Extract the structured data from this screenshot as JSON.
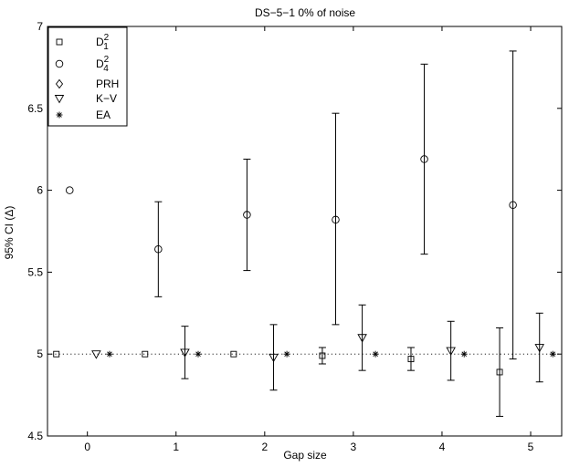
{
  "chart_data": {
    "type": "scatter",
    "title": "DS−5−1  0% of noise",
    "xlabel": "Gap size",
    "ylabel": "95% CI (Δ)",
    "xlim": [
      -0.45,
      5.35
    ],
    "ylim": [
      4.5,
      7
    ],
    "xticks": [
      0,
      1,
      2,
      3,
      4,
      5
    ],
    "yticks": [
      4.5,
      5,
      5.5,
      6,
      6.5,
      7
    ],
    "ytick_labels": [
      "4.5",
      "5",
      "5.5",
      "6",
      "6.5",
      "7"
    ],
    "reference_line": {
      "y": 5,
      "style": "dotted"
    },
    "grid": false,
    "legend_position": "top-left",
    "series": [
      {
        "legend_main": "D",
        "legend_sub": "1",
        "legend_sup": "2",
        "marker": "square",
        "points": [
          {
            "x": -0.35,
            "y": 5.0
          },
          {
            "x": 0.65,
            "y": 5.0
          },
          {
            "x": 1.65,
            "y": 5.0
          },
          {
            "x": 2.65,
            "y": 4.99,
            "low": 4.94,
            "high": 5.04
          },
          {
            "x": 3.65,
            "y": 4.97,
            "low": 4.9,
            "high": 5.04
          },
          {
            "x": 4.65,
            "y": 4.89,
            "low": 4.62,
            "high": 5.16
          }
        ]
      },
      {
        "legend_main": "D",
        "legend_sub": "4",
        "legend_sup": "2",
        "marker": "circle",
        "points": [
          {
            "x": -0.2,
            "y": 6.0
          },
          {
            "x": 0.8,
            "y": 5.64,
            "low": 5.35,
            "high": 5.93
          },
          {
            "x": 1.8,
            "y": 5.85,
            "low": 5.51,
            "high": 6.19
          },
          {
            "x": 2.8,
            "y": 5.82,
            "low": 5.18,
            "high": 6.47
          },
          {
            "x": 3.8,
            "y": 6.19,
            "low": 5.61,
            "high": 6.77
          },
          {
            "x": 4.8,
            "y": 5.91,
            "low": 4.97,
            "high": 6.85
          }
        ]
      },
      {
        "legend_main": "PRH",
        "marker": "diamond",
        "points": []
      },
      {
        "legend_main": "K−V",
        "marker": "triangle-down",
        "points": [
          {
            "x": 0.1,
            "y": 5.0
          },
          {
            "x": 1.1,
            "y": 5.01,
            "low": 4.85,
            "high": 5.17
          },
          {
            "x": 2.1,
            "y": 4.98,
            "low": 4.78,
            "high": 5.18
          },
          {
            "x": 3.1,
            "y": 5.1,
            "low": 4.9,
            "high": 5.3
          },
          {
            "x": 4.1,
            "y": 5.02,
            "low": 4.84,
            "high": 5.2
          },
          {
            "x": 5.1,
            "y": 5.04,
            "low": 4.83,
            "high": 5.25
          }
        ]
      },
      {
        "legend_main": "EA",
        "marker": "asterisk",
        "points": [
          {
            "x": 0.25,
            "y": 5.0
          },
          {
            "x": 1.25,
            "y": 5.0
          },
          {
            "x": 2.25,
            "y": 5.0
          },
          {
            "x": 3.25,
            "y": 5.0
          },
          {
            "x": 4.25,
            "y": 5.0
          },
          {
            "x": 5.25,
            "y": 5.0
          }
        ]
      }
    ]
  }
}
